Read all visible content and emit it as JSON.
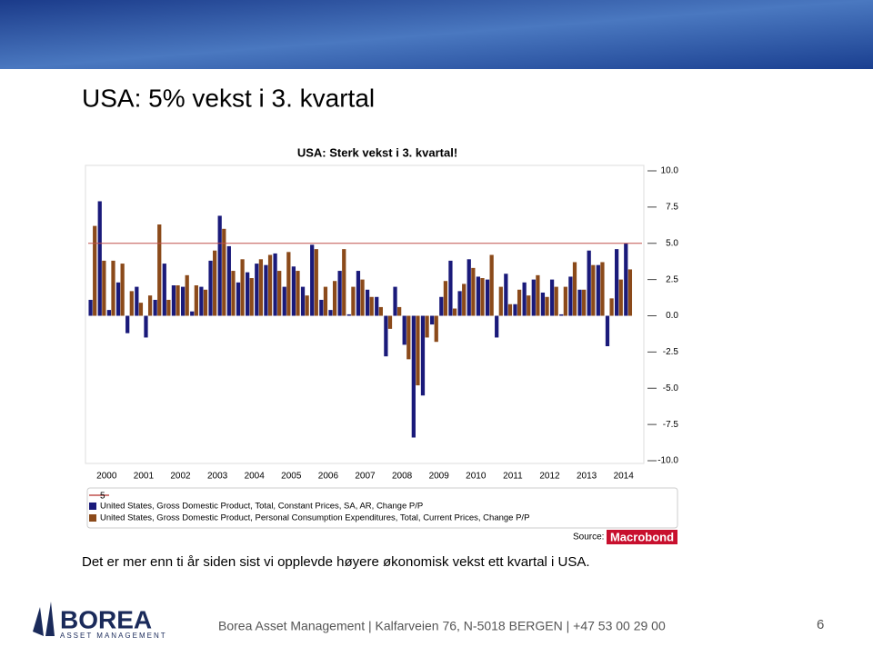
{
  "slide": {
    "title": "USA: 5% vekst i 3. kvartal",
    "caption": "Det er mer enn ti år siden sist vi opplevde høyere økonomisk vekst ett kvartal i USA.",
    "footer": "Borea Asset Management | Kalfarveien 76, N-5018 BERGEN | +47 53 00 29 00",
    "page_number": "6",
    "logo_name": "BOREA",
    "logo_sub": "ASSET MANAGEMENT",
    "source_label": "Source:",
    "source_name": "Macrobond"
  },
  "chart_data": {
    "type": "bar",
    "title": "USA: Sterk vekst i 3. kvartal!",
    "categories": [
      "2000",
      null,
      null,
      null,
      "2001",
      null,
      null,
      null,
      "2002",
      null,
      null,
      null,
      "2003",
      null,
      null,
      null,
      "2004",
      null,
      null,
      null,
      "2005",
      null,
      null,
      null,
      "2006",
      null,
      null,
      null,
      "2007",
      null,
      null,
      null,
      "2008",
      null,
      null,
      null,
      "2009",
      null,
      null,
      null,
      "2010",
      null,
      null,
      null,
      "2011",
      null,
      null,
      null,
      "2012",
      null,
      null,
      null,
      "2013",
      null,
      null,
      null,
      "2014",
      null,
      null
    ],
    "series": [
      {
        "name": "United States, Gross Domestic Product, Total, Constant Prices, SA, AR, Change P/P",
        "color": "#1a1a7a",
        "values": [
          1.1,
          7.9,
          0.4,
          2.3,
          -1.2,
          2.0,
          -1.5,
          1.1,
          3.6,
          2.1,
          2.0,
          0.3,
          2.0,
          3.8,
          6.9,
          4.8,
          2.3,
          3.0,
          3.6,
          3.5,
          4.3,
          2.0,
          3.4,
          2.0,
          4.9,
          1.1,
          0.4,
          3.1,
          0.1,
          3.1,
          1.8,
          1.3,
          -2.8,
          2.0,
          -2.0,
          -8.4,
          -5.5,
          -0.6,
          1.3,
          3.8,
          1.7,
          3.9,
          2.7,
          2.5,
          -1.5,
          2.9,
          0.8,
          2.3,
          2.5,
          1.6,
          2.5,
          0.1,
          2.7,
          1.8,
          4.5,
          3.5,
          -2.1,
          4.6,
          5.0
        ]
      },
      {
        "name": "United States, Gross Domestic Product, Personal Consumption Expenditures, Total, Current Prices, Change P/P",
        "color": "#8b4a1a",
        "values": [
          6.2,
          3.8,
          3.8,
          3.6,
          1.7,
          0.9,
          1.4,
          6.3,
          1.1,
          2.1,
          2.8,
          2.1,
          1.8,
          4.5,
          6.0,
          3.1,
          3.9,
          2.6,
          3.9,
          4.2,
          3.1,
          4.4,
          3.1,
          1.4,
          4.6,
          2.0,
          2.4,
          4.6,
          2.0,
          2.5,
          1.3,
          0.6,
          -0.9,
          0.6,
          -3.0,
          -4.8,
          -1.5,
          -1.8,
          2.4,
          0.5,
          2.2,
          3.3,
          2.6,
          4.2,
          2.0,
          0.8,
          1.8,
          1.4,
          2.8,
          1.3,
          2.0,
          2.0,
          3.7,
          1.8,
          3.5,
          3.7,
          1.2,
          2.5,
          3.2
        ]
      }
    ],
    "reference_line": {
      "value": 5,
      "color": "#c0504d"
    },
    "ylim": [
      -10,
      10
    ],
    "yticks": [
      {
        "value": 10,
        "label": "10.0"
      },
      {
        "value": 7.5,
        "label": "7.5"
      },
      {
        "value": 5,
        "label": "5.0"
      },
      {
        "value": 2.5,
        "label": "2.5"
      },
      {
        "value": 0,
        "label": "0.0"
      },
      {
        "value": -2.5,
        "label": "-2.5"
      },
      {
        "value": -5,
        "label": "-5.0"
      },
      {
        "value": -7.5,
        "label": "-7.5"
      },
      {
        "value": -10,
        "label": "-10.0"
      }
    ]
  }
}
